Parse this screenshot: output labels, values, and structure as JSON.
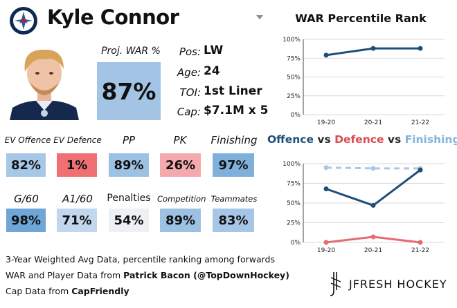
{
  "player": {
    "name": "Kyle Connor"
  },
  "proj_war": {
    "label": "Proj. WAR %",
    "value": "87%"
  },
  "info": [
    {
      "key": "Pos:",
      "value": "LW"
    },
    {
      "key": "Age:",
      "value": "24"
    },
    {
      "key": "TOI:",
      "value": "1st Liner"
    },
    {
      "key": "Cap:",
      "value": "$7.1M x 5"
    }
  ],
  "stats_row1": [
    {
      "label": "EV Offence",
      "value": "82%",
      "color": "#a7c7e7"
    },
    {
      "label": "EV Defence",
      "value": "1%",
      "color": "#ef6f73"
    },
    {
      "label": "PP",
      "value": "89%",
      "color": "#9dc1e3"
    },
    {
      "label": "PK",
      "value": "26%",
      "color": "#f3a9ae"
    },
    {
      "label": "Finishing",
      "value": "97%",
      "color": "#7fb0dc"
    }
  ],
  "stats_row2": [
    {
      "label": "G/60",
      "value": "98%",
      "color": "#6ea6d8"
    },
    {
      "label": "A1/60",
      "value": "71%",
      "color": "#c2d7ee"
    },
    {
      "label": "Penalties",
      "value": "54%",
      "color": "#eef0f3"
    },
    {
      "label": "Competition",
      "value": "89%",
      "color": "#9dc1e3"
    },
    {
      "label": "Teammates",
      "value": "83%",
      "color": "#a5c6e6"
    }
  ],
  "footer": {
    "line1": "3-Year Weighted Avg Data, percentile ranking among forwards",
    "line2_prefix": "WAR and Player Data from ",
    "line2_bold": "Patrick Bacon (@TopDownHockey)",
    "line3_prefix": "Cap Data from ",
    "line3_bold": "CapFriendly"
  },
  "brand": {
    "name": "JFRESH HOCKEY"
  },
  "chart_data": [
    {
      "type": "line",
      "title": "WAR Percentile Rank",
      "categories": [
        "19-20",
        "20-21",
        "21-22"
      ],
      "yticks": [
        "0%",
        "25%",
        "50%",
        "75%",
        "100%"
      ],
      "ylim": [
        0,
        100
      ],
      "grid": true,
      "series": [
        {
          "values": [
            79,
            88,
            88
          ],
          "color": "#1f4e79",
          "dashed": false
        }
      ]
    },
    {
      "type": "line",
      "title_parts": [
        {
          "text": "Offence",
          "color": "#1f4e79"
        },
        {
          "text": " vs ",
          "color": "#2b2b2b"
        },
        {
          "text": "Defence",
          "color": "#d94c50"
        },
        {
          "text": " vs ",
          "color": "#2b2b2b"
        },
        {
          "text": "Finishing",
          "color": "#86b3dc"
        }
      ],
      "categories": [
        "19-20",
        "20-21",
        "21-22"
      ],
      "yticks": [
        "0%",
        "25%",
        "50%",
        "75%",
        "100%"
      ],
      "ylim": [
        0,
        100
      ],
      "grid": true,
      "series": [
        {
          "values": [
            95,
            94,
            94
          ],
          "color": "#a8c8e6",
          "dashed": true
        },
        {
          "values": [
            68,
            47,
            92
          ],
          "color": "#1f4e79",
          "dashed": false
        },
        {
          "values": [
            0,
            7,
            0
          ],
          "color": "#e46b70",
          "dashed": false
        }
      ]
    }
  ]
}
